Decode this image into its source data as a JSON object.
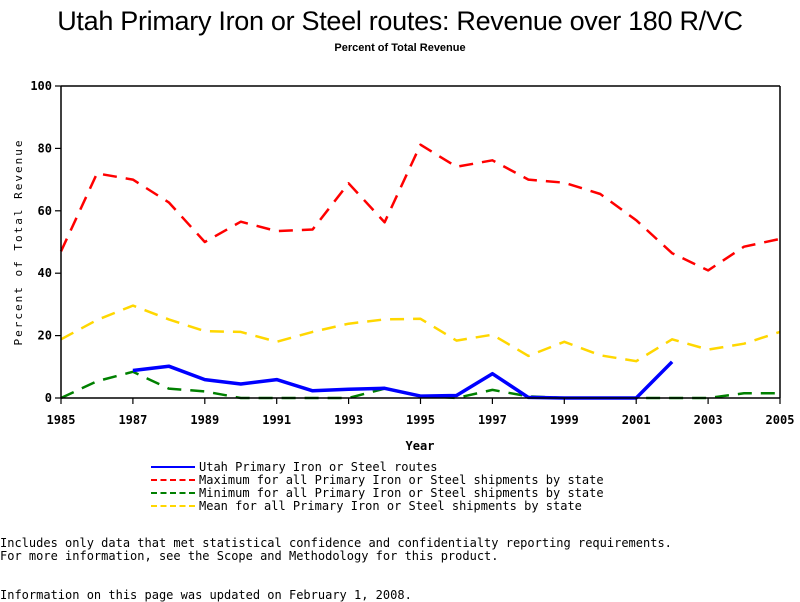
{
  "chart_data": {
    "type": "line",
    "title": "Utah Primary Iron or Steel routes: Revenue over 180 R/VC",
    "subtitle": "Percent of Total Revenue",
    "xlabel": "Year",
    "ylabel": "Percent of Total Revenue",
    "xlim": [
      1985,
      2005
    ],
    "ylim": [
      0,
      100
    ],
    "x_ticks": [
      1985,
      1987,
      1989,
      1991,
      1993,
      1995,
      1997,
      1999,
      2001,
      2003,
      2005
    ],
    "y_ticks": [
      0,
      20,
      40,
      60,
      80,
      100
    ],
    "grid": false,
    "legend_position": "bottom",
    "series": [
      {
        "name": "Utah Primary Iron or Steel routes",
        "color": "#0000ff",
        "style": "solid",
        "x": [
          1987,
          1988,
          1989,
          1990,
          1991,
          1992,
          1993,
          1994,
          1995,
          1996,
          1997,
          1998,
          1999,
          2000,
          2001,
          2002
        ],
        "values": [
          8.8,
          10.2,
          5.9,
          4.5,
          5.9,
          2.3,
          2.8,
          3.1,
          0.6,
          0.8,
          7.8,
          0.2,
          0,
          0,
          0,
          11.6
        ]
      },
      {
        "name": "Maximum for all Primary Iron or Steel shipments by state",
        "color": "#ff0000",
        "style": "dashed",
        "x": [
          1985,
          1986,
          1987,
          1988,
          1989,
          1990,
          1991,
          1992,
          1993,
          1994,
          1995,
          1996,
          1997,
          1998,
          1999,
          2000,
          2001,
          2002,
          2003,
          2004,
          2005
        ],
        "values": [
          47,
          72,
          70,
          62.7,
          50,
          56.5,
          53.5,
          54,
          68.8,
          56.3,
          81.2,
          74.1,
          76.2,
          70,
          69,
          65.4,
          57,
          46.4,
          40.9,
          48.5,
          51
        ]
      },
      {
        "name": "Minimum for all Primary Iron or Steel shipments by state",
        "color": "#008000",
        "style": "dashed",
        "x": [
          1985,
          1986,
          1987,
          1988,
          1989,
          1990,
          1991,
          1992,
          1993,
          1994,
          1995,
          1996,
          1997,
          1998,
          1999,
          2000,
          2001,
          2002,
          2003,
          2004,
          2005
        ],
        "values": [
          0,
          5.4,
          8.4,
          3.0,
          2.1,
          0,
          0,
          0,
          0,
          3.0,
          0.7,
          0,
          2.6,
          0.5,
          0,
          0,
          0,
          0,
          0,
          1.5,
          1.5
        ]
      },
      {
        "name": "Mean for all Primary Iron or Steel shipments by state",
        "color": "#ffd700",
        "style": "dashed",
        "x": [
          1985,
          1986,
          1987,
          1988,
          1989,
          1990,
          1991,
          1992,
          1993,
          1994,
          1995,
          1996,
          1997,
          1998,
          1999,
          2000,
          2001,
          2002,
          2003,
          2004,
          2005
        ],
        "values": [
          18.8,
          25,
          29.6,
          25.2,
          21.4,
          21.2,
          18,
          21.2,
          23.8,
          25.2,
          25.4,
          18.4,
          20.3,
          13.5,
          18,
          13.7,
          11.8,
          18.8,
          15.5,
          17.4,
          21.2
        ]
      }
    ]
  },
  "footnotes": {
    "line1": "Includes only data that met statistical confidence and confidentialty reporting requirements.",
    "line2": "For more information, see the Scope and Methodology for this product.",
    "updated": "Information on this page was updated on February 1, 2008."
  }
}
